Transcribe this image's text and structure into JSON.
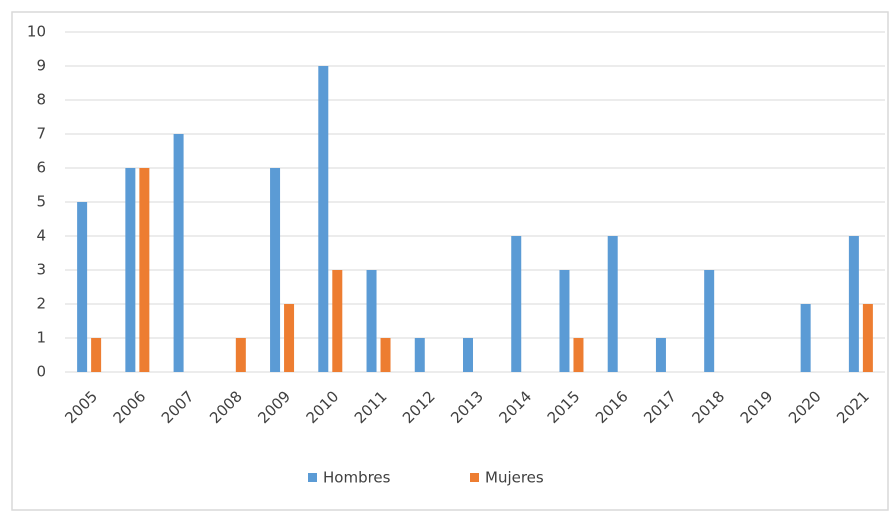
{
  "chart_data": {
    "type": "bar",
    "categories": [
      "2005",
      "2006",
      "2007",
      "2008",
      "2009",
      "2010",
      "2011",
      "2012",
      "2013",
      "2014",
      "2015",
      "2016",
      "2017",
      "2018",
      "2019",
      "2020",
      "2021"
    ],
    "series": [
      {
        "name": "Hombres",
        "color": "#5b9bd5",
        "values": [
          5,
          6,
          7,
          0,
          6,
          9,
          3,
          1,
          1,
          4,
          3,
          4,
          1,
          3,
          0,
          2,
          4
        ]
      },
      {
        "name": "Mujeres",
        "color": "#ed7d31",
        "values": [
          1,
          6,
          0,
          1,
          2,
          3,
          1,
          0,
          0,
          0,
          1,
          0,
          0,
          0,
          0,
          0,
          2
        ]
      }
    ],
    "ylim": [
      0,
      10
    ],
    "yticks": [
      0,
      1,
      2,
      3,
      4,
      5,
      6,
      7,
      8,
      9,
      10
    ],
    "grid": true,
    "legend": "bottom"
  }
}
